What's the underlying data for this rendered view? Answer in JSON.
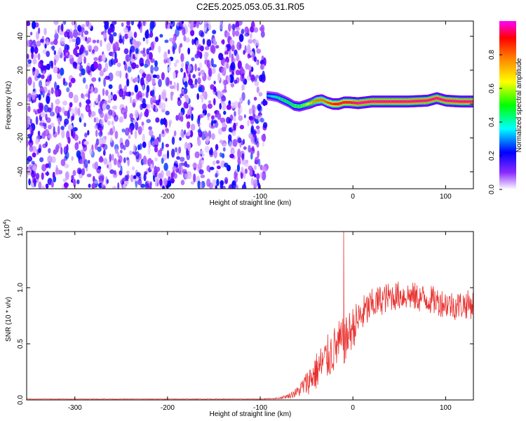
{
  "title": "C2E5.2025.053.05.31.R05",
  "chart_data": [
    {
      "type": "heatmap",
      "xlabel": "Height of straight line (km)",
      "ylabel": "Frequency (Hz)",
      "xlim": [
        -352,
        130
      ],
      "ylim": [
        -50,
        49
      ],
      "xticks": [
        -300,
        -200,
        -100,
        0,
        100
      ],
      "yticks": [
        -40,
        -20,
        0,
        20,
        40
      ],
      "xtick_labels": [
        "-300",
        "-200",
        "-100",
        "0",
        "100"
      ],
      "ytick_labels": [
        "-40",
        "-20",
        "0",
        "20",
        "40"
      ],
      "colorbar": {
        "label": "Normalized spectral amplitude",
        "range": [
          0,
          1
        ],
        "ticks": [
          0.0,
          0.2,
          0.4,
          0.6,
          0.8
        ],
        "tick_labels": [
          "0.0",
          "0.2",
          "0.4",
          "0.6",
          "0.8"
        ],
        "colormap": [
          "#ffffff",
          "#7b00ff",
          "#0000ff",
          "#00ffff",
          "#00ff00",
          "#ffff00",
          "#ff8000",
          "#ff0000",
          "#ff00ff"
        ]
      },
      "noise_region": {
        "x": [
          -352,
          -93
        ],
        "amplitude_max": 0.25
      },
      "signal_track": {
        "x": [
          -93,
          -87,
          -82,
          -76,
          -70,
          -64,
          -58,
          -52,
          -46,
          -40,
          -34,
          -28,
          -22,
          -16,
          -10,
          -4,
          5,
          20,
          40,
          60,
          80,
          90,
          100,
          115,
          130
        ],
        "freq": [
          5,
          4.5,
          4,
          2.5,
          1,
          -1,
          -1.5,
          -0.5,
          0.5,
          2,
          2.5,
          1,
          0,
          0,
          1,
          1,
          0.5,
          1.5,
          1.5,
          1.5,
          2,
          3.5,
          2,
          1.5,
          1.5
        ],
        "amplitude": [
          0.35,
          0.4,
          0.45,
          0.5,
          0.5,
          0.55,
          0.55,
          0.6,
          0.7,
          0.8,
          0.8,
          0.85,
          0.9,
          0.95,
          0.95,
          0.95,
          1,
          1,
          1,
          1,
          1,
          1,
          1,
          1,
          1
        ]
      }
    },
    {
      "type": "line",
      "xlabel": "Height of straight line (km)",
      "ylabel": "SNR (10 * v/v)",
      "exponent_label": "(x10",
      "exponent_sup": "4",
      "exponent_close": ")",
      "xlim": [
        -352,
        130
      ],
      "ylim": [
        0,
        15000
      ],
      "xticks": [
        -300,
        -200,
        -100,
        0,
        100
      ],
      "yticks": [
        0,
        5000,
        10000,
        15000
      ],
      "xtick_labels": [
        "-300",
        "-200",
        "-100",
        "0",
        "100"
      ],
      "ytick_labels": [
        "0.0",
        "0.5",
        "1.0",
        "1.5"
      ],
      "series": [
        {
          "color": "#e8312f",
          "x": [
            -352,
            -200,
            -100,
            -80,
            -70,
            -60,
            -55,
            -50,
            -45,
            -40,
            -35,
            -30,
            -25,
            -20,
            -15,
            -10,
            -8,
            -5,
            0,
            5,
            10,
            15,
            20,
            30,
            40,
            50,
            60,
            70,
            80,
            90,
            100,
            110,
            120,
            130
          ],
          "mean": [
            80,
            80,
            80,
            150,
            350,
            700,
            1100,
            1500,
            2000,
            2500,
            3000,
            3500,
            4000,
            4500,
            5000,
            5200,
            5200,
            5800,
            6500,
            7000,
            7600,
            8000,
            8400,
            8900,
            9200,
            9300,
            9300,
            9100,
            9000,
            8800,
            8600,
            8400,
            8500,
            8500
          ],
          "spread": [
            25,
            25,
            25,
            60,
            200,
            500,
            800,
            1100,
            1400,
            1700,
            1900,
            2000,
            2100,
            2100,
            2100,
            2100,
            2100,
            2000,
            1900,
            1800,
            1700,
            1600,
            1500,
            1400,
            1300,
            1300,
            1300,
            1300,
            1300,
            1300,
            1300,
            1300,
            1300,
            1300
          ],
          "spike": {
            "x": -10,
            "y": 15000
          }
        }
      ]
    }
  ]
}
